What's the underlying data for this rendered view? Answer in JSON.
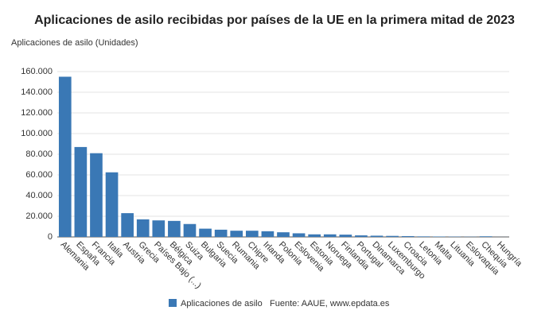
{
  "chart_data": {
    "type": "bar",
    "title": "Aplicaciones de asilo recibidas por países de la UE en la primera mitad de 2023",
    "y_axis_label": "Aplicaciones de asilo (Unidades)",
    "source": "Fuente: AAUE, www.epdata.es",
    "categories": [
      "Alemania",
      "España",
      "Francia",
      "Italia",
      "Austria",
      "Grecia",
      "Países Bajo (...)",
      "Bélgica",
      "Suiza",
      "Bulgaria",
      "Suecia",
      "Rumania",
      "Chipre",
      "Irlanda",
      "Polonia",
      "Eslovenia",
      "Estonia",
      "Noruega",
      "Finlandia",
      "Portugal",
      "Dinamarca",
      "Luxemburgo",
      "Croacia",
      "Letonia",
      "Malta",
      "Lituania",
      "Eslovaquia",
      "Chequia",
      "Hungría"
    ],
    "series": [
      {
        "name": "Aplicaciones de asilo",
        "color": "#3a78b5",
        "values": [
          155000,
          87000,
          81000,
          62500,
          23000,
          17000,
          16000,
          15500,
          12500,
          8000,
          7000,
          6000,
          6000,
          5500,
          4500,
          3500,
          2500,
          2500,
          2200,
          1500,
          1200,
          1000,
          800,
          500,
          400,
          300,
          200,
          600,
          50
        ]
      }
    ],
    "ylim": [
      0,
      170000
    ],
    "yticks": [
      0,
      {
        "value": 20000,
        "label": "20.000"
      },
      {
        "value": 40000,
        "label": "40.000"
      },
      {
        "value": 60000,
        "label": "60.000"
      },
      {
        "value": 80000,
        "label": "80.000"
      },
      {
        "value": 100000,
        "label": "100.000"
      },
      {
        "value": 120000,
        "label": "120.000"
      },
      {
        "value": 140000,
        "label": "140.000"
      },
      {
        "value": 160000,
        "label": "160.000"
      }
    ],
    "grid": true
  }
}
